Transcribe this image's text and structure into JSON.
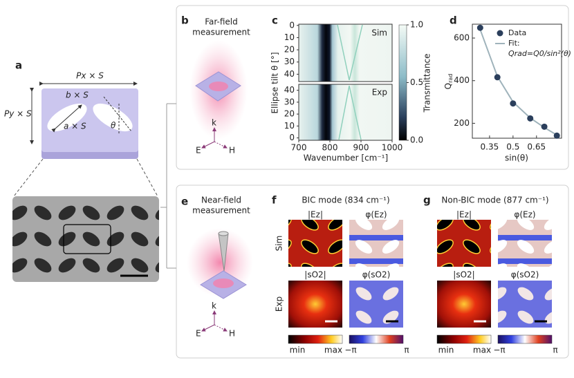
{
  "panels": {
    "a": {
      "label": "a",
      "px": "Px × S",
      "py": "Py × S",
      "b": "b × S",
      "a": "a × S",
      "theta": "θ"
    },
    "b": {
      "label": "b",
      "title": [
        "Far-field",
        "measurement"
      ],
      "axes": [
        "E",
        "k",
        "H"
      ]
    },
    "c": {
      "label": "c",
      "ylabel": "Ellipse tilt θ [°]",
      "xlabel": "Wavenumber [cm⁻¹]",
      "xlim": [
        700,
        1000
      ],
      "xticks": [
        700,
        800,
        900,
        1000
      ],
      "sim": {
        "label": "Sim",
        "ylim": [
          -1,
          46
        ],
        "yticks": [
          0,
          10,
          20,
          30,
          40
        ]
      },
      "exp": {
        "label": "Exp",
        "ylim": [
          45,
          -2
        ],
        "yticks": [
          40,
          30,
          20,
          10,
          0
        ]
      },
      "colorbar": {
        "label": "Transmittance",
        "lim": [
          0,
          1
        ],
        "ticks": [
          {
            "value": 1,
            "label": "1.0"
          },
          {
            "value": 0.5,
            "label": "0.5"
          },
          {
            "value": 0,
            "label": "0.0"
          }
        ]
      }
    },
    "e": {
      "label": "e",
      "title": [
        "Near-field",
        "measurement"
      ],
      "axes": [
        "E",
        "k",
        "H"
      ]
    },
    "f": {
      "label": "f",
      "title": "BIC mode (834 cm⁻¹)",
      "headers": [
        "|Ez|",
        "φ(Ez)",
        "|sO2|",
        "φ(sO2)"
      ],
      "rows": [
        "Sim",
        "Exp"
      ],
      "colorbar": [
        "min",
        "max",
        "−π",
        "π"
      ]
    },
    "g": {
      "label": "g",
      "title": "Non-BIC mode (877 cm⁻¹)",
      "headers": [
        "|Ez|",
        "φ(Ez)",
        "|sO2|",
        "φ(sO2)"
      ],
      "colorbar": [
        "min",
        "max",
        "−π",
        "π"
      ]
    }
  },
  "chart_data": {
    "type": "scatter",
    "label": "d",
    "xlabel": "sin(θ)",
    "ylabel": "Q",
    "ylabel_sub": "rad",
    "x": [
      0.29,
      0.4,
      0.5,
      0.61,
      0.7,
      0.78
    ],
    "series": [
      {
        "name": "Data",
        "color": "#2b3f5c",
        "values": [
          648,
          416,
          293,
          223,
          184,
          142
        ]
      },
      {
        "name": "Fit:",
        "type": "line",
        "color": "#9fb3bb",
        "values": [
          640,
          420,
          300,
          225,
          180,
          145
        ]
      }
    ],
    "legend_formula": "Qrad=Q0/sin²(θ)",
    "xlim": [
      0.24,
      0.81
    ],
    "ylim": [
      130,
      665
    ],
    "xticks": [
      0.35,
      0.5,
      0.65
    ],
    "yticks": [
      200,
      400,
      600
    ]
  }
}
